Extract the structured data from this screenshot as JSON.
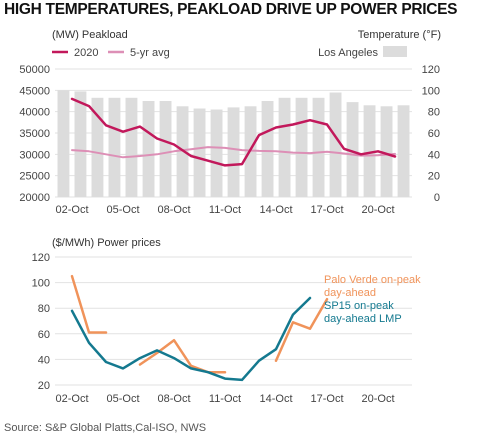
{
  "title": "HIGH TEMPERATURES, PEAKLOAD DRIVE UP POWER PRICES",
  "source": "Source: S&P Global Platts,Cal-ISO, NWS",
  "colors": {
    "peakload_2020": "#c2185b",
    "peakload_5yr": "#dd8fb6",
    "temperature": "#dcdcdc",
    "palo_verde": "#f0935a",
    "sp15": "#14798f",
    "grid": "#e2e2e2"
  },
  "chart_data": [
    {
      "type": "line",
      "left_axis_label": "(MW) Peakload",
      "right_axis_label": "Temperature (°F)",
      "left_ylim": [
        20000,
        50000
      ],
      "left_ticks": [
        "50000",
        "45000",
        "40000",
        "35000",
        "30000",
        "25000",
        "20000"
      ],
      "right_ylim": [
        0,
        120
      ],
      "right_ticks": [
        "120",
        "100",
        "80",
        "60",
        "40",
        "20",
        "0"
      ],
      "x_tick_labels": [
        "02-Oct",
        "05-Oct",
        "08-Oct",
        "11-Oct",
        "14-Oct",
        "17-Oct",
        "20-Oct"
      ],
      "grid": true,
      "legend": [
        "2020",
        "5-yr avg",
        "Los Angeles"
      ],
      "bars": {
        "name": "Los Angeles",
        "axis": "right",
        "values": [
          100,
          99,
          93,
          93,
          93,
          90,
          90,
          85,
          83,
          82,
          84,
          85,
          90,
          93,
          93,
          93,
          98,
          89,
          86,
          85,
          86
        ]
      },
      "series": [
        {
          "name": "2020",
          "axis": "left",
          "values": [
            43000,
            41300,
            36800,
            35300,
            36500,
            33700,
            32300,
            29600,
            28500,
            27400,
            27700,
            34500,
            36300,
            37000,
            38000,
            37000,
            31300,
            30000,
            30700,
            29500
          ]
        },
        {
          "name": "5-yr avg",
          "axis": "left",
          "values": [
            31000,
            30700,
            30000,
            29300,
            29600,
            30000,
            30700,
            31200,
            31700,
            31500,
            31000,
            30800,
            30700,
            30400,
            30300,
            30600,
            30200,
            29700,
            29800,
            30100
          ]
        }
      ]
    },
    {
      "type": "line",
      "left_axis_label": "($/MWh) Power prices",
      "ylim": [
        20,
        120
      ],
      "ticks": [
        "120",
        "100",
        "80",
        "60",
        "40",
        "20"
      ],
      "x_tick_labels": [
        "02-Oct",
        "05-Oct",
        "08-Oct",
        "11-Oct",
        "14-Oct",
        "17-Oct",
        "20-Oct"
      ],
      "grid": true,
      "series": [
        {
          "name": "Palo Verde on-peak day-ahead",
          "label_lines": [
            "Palo Verde on-peak",
            "day-ahead"
          ],
          "values": [
            105,
            61,
            61,
            null,
            36,
            45,
            55,
            35,
            30,
            30,
            null,
            null,
            39,
            69,
            64,
            87
          ]
        },
        {
          "name": "SP15 on-peak day-ahead LMP",
          "label_lines": [
            "SP15 on-peak",
            "day-ahead LMP"
          ],
          "values": [
            78,
            53,
            38,
            33,
            41,
            47,
            41,
            33,
            30,
            25,
            24,
            39,
            48,
            75,
            88
          ]
        }
      ]
    }
  ]
}
